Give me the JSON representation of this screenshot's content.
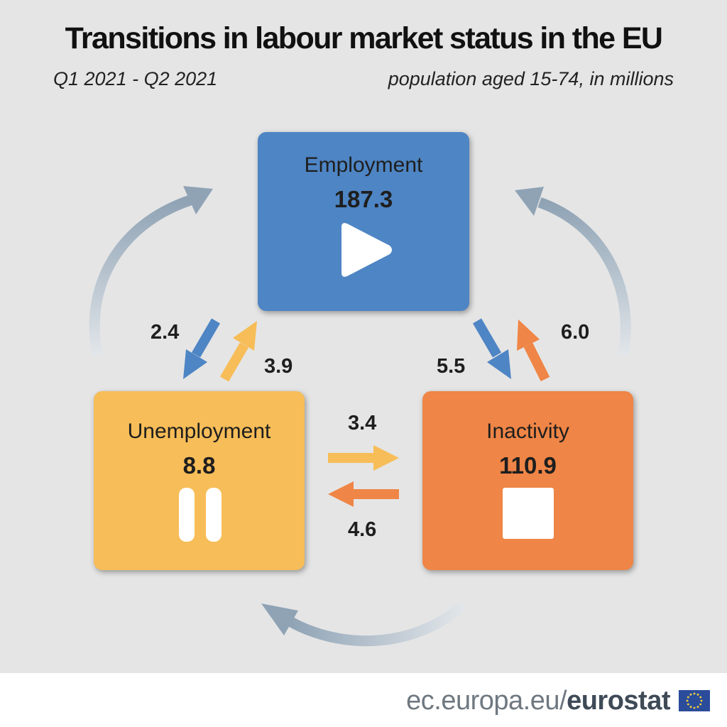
{
  "title": "Transitions in labour market status in the EU",
  "subtitle_left": "Q1 2021 - Q2 2021",
  "subtitle_right": "population aged 15-74, in millions",
  "states": {
    "employment": {
      "label": "Employment",
      "value": "187.3",
      "icon": "play-icon"
    },
    "unemployment": {
      "label": "Unemployment",
      "value": "8.8",
      "icon": "pause-icon"
    },
    "inactivity": {
      "label": "Inactivity",
      "value": "110.9",
      "icon": "stop-icon"
    }
  },
  "flows": {
    "employment_to_unemployment": "2.4",
    "unemployment_to_employment": "3.9",
    "employment_to_inactivity": "5.5",
    "inactivity_to_employment": "6.0",
    "unemployment_to_inactivity": "3.4",
    "inactivity_to_unemployment": "4.6"
  },
  "footer": {
    "domain": "ec.europa.eu/",
    "brand": "eurostat"
  },
  "colors": {
    "background": "#e5e5e5",
    "employment": "#4e85c4",
    "unemployment": "#f7bd58",
    "inactivity": "#ef8546",
    "cycle_arrow": "#9aabbb"
  }
}
